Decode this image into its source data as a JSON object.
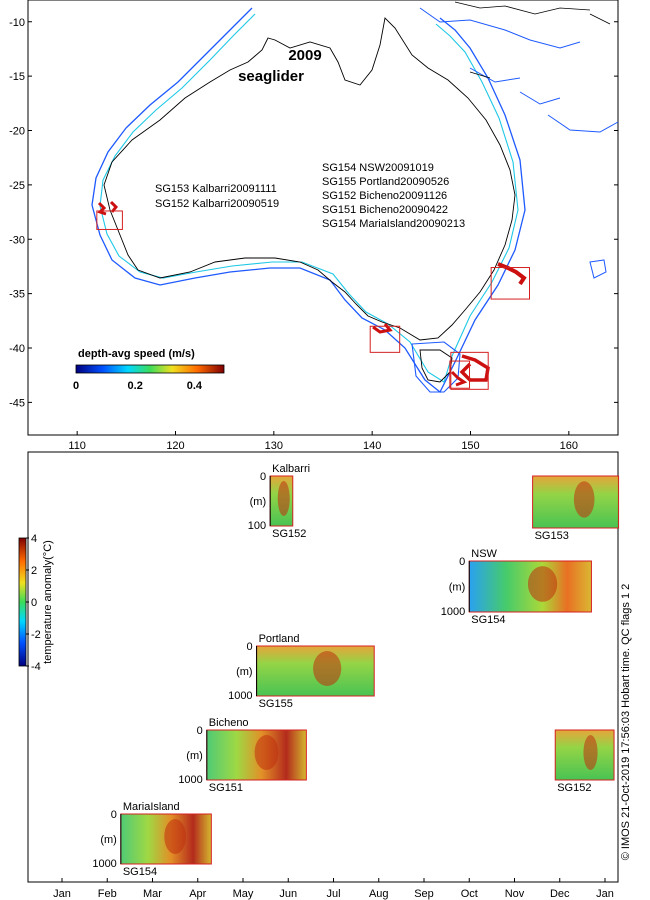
{
  "chart_data": [
    {
      "type": "scatter",
      "title": "2009 seaglider",
      "title_lines": [
        "2009",
        "seaglider"
      ],
      "xlim": [
        105,
        165
      ],
      "ylim": [
        -48,
        -8
      ],
      "xticks": [
        110,
        120,
        130,
        140,
        150,
        160
      ],
      "yticks": [
        -10,
        -15,
        -20,
        -25,
        -30,
        -35,
        -40,
        -45
      ],
      "colorbar": {
        "label": "depth-avg speed (m/s)",
        "ticks": [
          0,
          0.2,
          0.4
        ],
        "range": [
          0,
          0.5
        ]
      },
      "deployment_text_west": [
        "SG153 Kalbarri20091111",
        "SG152 Kalbarri20090519"
      ],
      "deployment_text_east": [
        "SG154 NSW20091019",
        "SG155 Portland20090526",
        "SG152 Bicheno20091126",
        "SG151 Bicheno20090422",
        "SG154 MariaIsland20090213"
      ],
      "regions": [
        {
          "x": [
            112.0,
            114.6
          ],
          "y": [
            -29.1,
            -27.4
          ]
        },
        {
          "x": [
            139.8,
            142.8
          ],
          "y": [
            -40.4,
            -38.0
          ]
        },
        {
          "x": [
            152.1,
            156.0
          ],
          "y": [
            -35.5,
            -32.6
          ]
        },
        {
          "x": [
            148.0,
            151.8
          ],
          "y": [
            -43.8,
            -40.4
          ]
        },
        {
          "x": [
            147.9,
            149.9
          ],
          "y": [
            -43.7,
            -41.2
          ]
        }
      ]
    },
    {
      "type": "heatmap",
      "xlabel_months": [
        "Jan",
        "Feb",
        "Mar",
        "Apr",
        "May",
        "Jun",
        "Jul",
        "Aug",
        "Sep",
        "Oct",
        "Nov",
        "Dec",
        "Jan"
      ],
      "colorbar": {
        "label": "temperature anomaly(°C)",
        "ticks": [
          4,
          2,
          0,
          -2,
          -4
        ],
        "range": [
          -4,
          4
        ]
      },
      "panels": [
        {
          "site": "Kalbarri",
          "glider": "SG152",
          "start_month": 5.6,
          "end_month": 6.1,
          "depth_ticks": [
            "0",
            "(m)",
            "100"
          ]
        },
        {
          "site": "",
          "glider": "SG153",
          "start_month": 11.4,
          "end_month": 13.3,
          "depth_ticks": []
        },
        {
          "site": "NSW",
          "glider": "SG154",
          "start_month": 10.0,
          "end_month": 12.7,
          "depth_ticks": [
            "0",
            "(m)",
            "1000"
          ]
        },
        {
          "site": "Portland",
          "glider": "SG155",
          "start_month": 5.3,
          "end_month": 7.9,
          "depth_ticks": [
            "0",
            "(m)",
            "1000"
          ]
        },
        {
          "site": "Bicheno",
          "glider": "SG151",
          "start_month": 4.2,
          "end_month": 6.4,
          "depth_ticks": [
            "0",
            "(m)",
            "1000"
          ]
        },
        {
          "site": "",
          "glider": "SG152",
          "start_month": 11.9,
          "end_month": 13.2,
          "depth_ticks": []
        },
        {
          "site": "MariaIsland",
          "glider": "SG154",
          "start_month": 2.3,
          "end_month": 4.3,
          "depth_ticks": [
            "0",
            "(m)",
            "1000"
          ]
        }
      ]
    }
  ],
  "footer": "© IMOS 21-Oct-2019 17:56:03 Hobart time. QC flags 1  2",
  "colors": {
    "region_box": "#d42020",
    "coast": "#000000",
    "shelf_blue": "#1e5aff",
    "shelf_cyan": "#1ec8e6"
  }
}
